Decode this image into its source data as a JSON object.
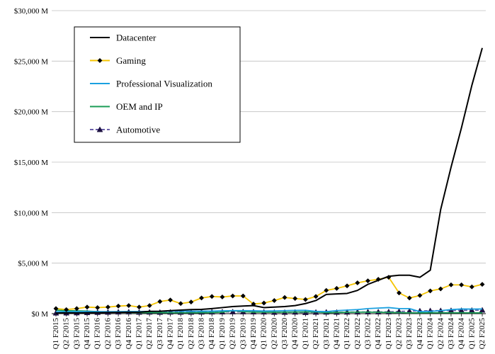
{
  "chart_data": {
    "type": "line",
    "title": "",
    "xlabel": "",
    "ylabel": "",
    "ylim": [
      0,
      30000
    ],
    "yticks": [
      0,
      5000,
      10000,
      15000,
      20000,
      25000,
      30000
    ],
    "ytick_labels": [
      "$0 M",
      "$5,000 M",
      "$10,000 M",
      "$15,000 M",
      "$20,000 M",
      "$25,000 M",
      "$30,000 M"
    ],
    "grid": "horizontal",
    "legend_position": "top-left",
    "categories": [
      "Q1 F2015",
      "Q2 F2015",
      "Q3 F2015",
      "Q4 F2015",
      "Q1 F2016",
      "Q2 F2016",
      "Q3 F2016",
      "Q4 F2016",
      "Q1 F2017",
      "Q2 F2017",
      "Q3 F2017",
      "Q4 F2017",
      "Q1 F2018",
      "Q2 F2018",
      "Q3 F2018",
      "Q4 F2018",
      "Q1 F2019",
      "Q2 F2019",
      "Q3 F2019",
      "Q4 F2019",
      "Q1 F2020",
      "Q2 F2020",
      "Q3 F2020",
      "Q4 F2020",
      "Q1 F2021",
      "Q2 F2021",
      "Q3 F2021",
      "Q4 F2021",
      "Q1 F2022",
      "Q2 F2022",
      "Q3 F2022",
      "Q4 F2022",
      "Q1 F2023",
      "Q2 F2023",
      "Q3 F2023",
      "Q4 F2023",
      "Q1 F2024",
      "Q2 F2024",
      "Q3 F2024",
      "Q4 F2024",
      "Q1 F2025",
      "Q2 F2025"
    ],
    "series": [
      {
        "name": "Datacenter",
        "color": "#000000",
        "marker": "none",
        "values": [
          60,
          80,
          70,
          90,
          100,
          110,
          120,
          140,
          150,
          230,
          240,
          300,
          350,
          400,
          420,
          500,
          600,
          700,
          750,
          800,
          600,
          650,
          700,
          800,
          1000,
          1300,
          1900,
          1950,
          2000,
          2300,
          2900,
          3300,
          3700,
          3800,
          3800,
          3600,
          4300,
          10300,
          14500,
          18400,
          22600,
          26300
        ]
      },
      {
        "name": "Gaming",
        "color": "#f5c400",
        "marker": "diamond",
        "values": [
          500,
          400,
          500,
          650,
          600,
          650,
          750,
          800,
          650,
          800,
          1200,
          1350,
          1000,
          1150,
          1550,
          1700,
          1650,
          1750,
          1750,
          950,
          1050,
          1300,
          1600,
          1500,
          1400,
          1700,
          2300,
          2500,
          2750,
          3050,
          3250,
          3400,
          3600,
          2050,
          1550,
          1800,
          2250,
          2450,
          2850,
          2850,
          2650,
          2900
        ]
      },
      {
        "name": "Professional Visualization",
        "color": "#1aa0e0",
        "marker": "none",
        "values": [
          190,
          200,
          200,
          210,
          200,
          190,
          200,
          210,
          210,
          220,
          230,
          250,
          250,
          240,
          240,
          250,
          280,
          300,
          300,
          290,
          260,
          270,
          300,
          320,
          330,
          230,
          200,
          300,
          350,
          400,
          500,
          550,
          600,
          500,
          500,
          200,
          230,
          300,
          400,
          460,
          450,
          460
        ]
      },
      {
        "name": "OEM and IP",
        "color": "#1a9c56",
        "marker": "none",
        "values": [
          350,
          300,
          280,
          250,
          200,
          150,
          130,
          120,
          110,
          100,
          100,
          90,
          90,
          90,
          100,
          110,
          150,
          300,
          200,
          150,
          150,
          140,
          150,
          160,
          170,
          180,
          100,
          120,
          140,
          150,
          150,
          140,
          120,
          100,
          80,
          80,
          90,
          90,
          90,
          90,
          80,
          80
        ]
      },
      {
        "name": "Automotive",
        "color": "#6b5fa8",
        "marker": "triangle",
        "values": [
          60,
          70,
          80,
          100,
          120,
          140,
          160,
          170,
          140,
          150,
          130,
          150,
          140,
          140,
          150,
          160,
          170,
          180,
          180,
          170,
          160,
          130,
          130,
          150,
          110,
          140,
          150,
          140,
          150,
          160,
          170,
          170,
          180,
          220,
          250,
          270,
          290,
          300,
          310,
          320,
          330,
          350
        ]
      }
    ]
  }
}
